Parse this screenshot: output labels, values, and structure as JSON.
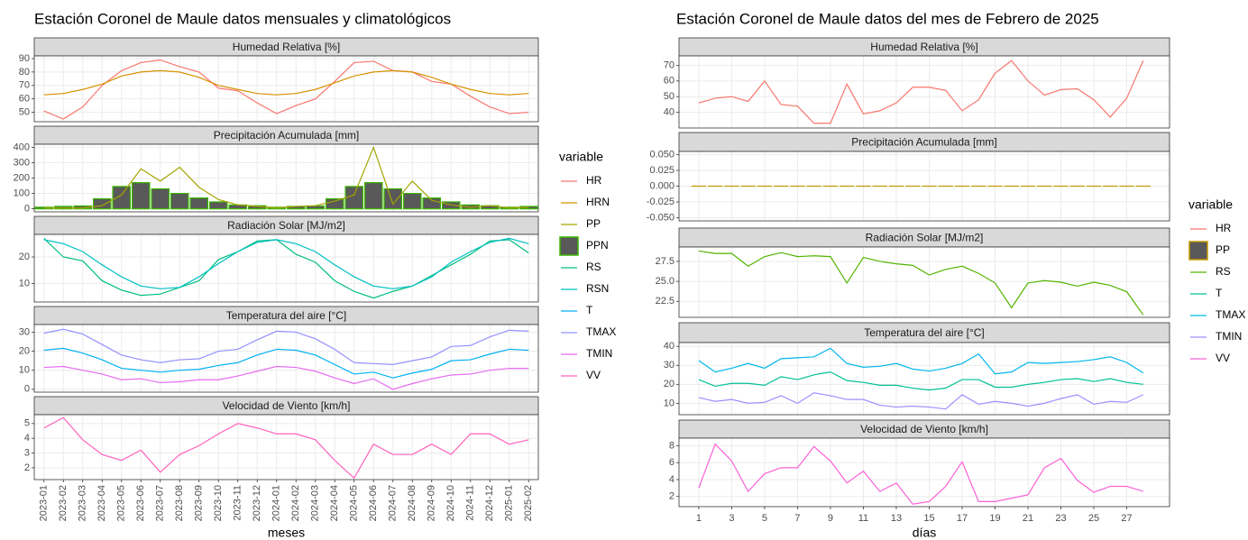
{
  "chart_data": [
    {
      "type": "line",
      "title": "Estación Coronel de Maule datos mensuales y climatológicos",
      "xlabel": "meses",
      "legend_title": "variable",
      "grid": true,
      "categories": [
        "2023-01",
        "2023-02",
        "2023-03",
        "2023-04",
        "2023-05",
        "2023-06",
        "2023-07",
        "2023-08",
        "2023-09",
        "2023-10",
        "2023-11",
        "2023-12",
        "2024-01",
        "2024-02",
        "2024-03",
        "2024-04",
        "2024-05",
        "2024-06",
        "2024-07",
        "2024-08",
        "2024-09",
        "2024-10",
        "2024-11",
        "2024-12",
        "2025-01",
        "2025-02"
      ],
      "panels": [
        {
          "title": "Humedad Relativa [%]",
          "ylim": [
            43,
            92
          ],
          "yticks": [
            50,
            60,
            70,
            80,
            90
          ],
          "series": [
            {
              "name": "HR",
              "color": "#F8766D",
              "values": [
                51,
                45,
                54,
                70,
                81,
                87,
                89,
                84,
                80,
                68,
                66,
                57,
                49,
                55,
                60,
                73,
                87,
                88,
                81,
                80,
                73,
                71,
                62,
                54,
                49,
                50
              ]
            },
            {
              "name": "HRN",
              "color": "#D89000",
              "values": [
                63,
                64,
                67,
                71,
                77,
                80,
                81,
                80,
                76,
                70,
                67,
                64,
                63,
                64,
                67,
                72,
                77,
                80,
                81,
                80,
                76,
                71,
                67,
                64,
                63,
                64
              ]
            }
          ]
        },
        {
          "title": "Precipitación Acumulada [mm]",
          "ylim": [
            -20,
            420
          ],
          "yticks": [
            0,
            100,
            200,
            300,
            400
          ],
          "series": [
            {
              "name": "PP",
              "color": "#A3A500",
              "values": [
                5,
                5,
                5,
                20,
                90,
                260,
                180,
                270,
                140,
                60,
                25,
                15,
                5,
                15,
                20,
                50,
                90,
                400,
                30,
                180,
                55,
                25,
                10,
                20,
                5,
                10
              ]
            },
            {
              "name": "PPN",
              "color": "#39B600",
              "kind": "bar",
              "fill": "#595959",
              "values": [
                10,
                15,
                18,
                65,
                145,
                170,
                130,
                100,
                70,
                45,
                25,
                20,
                10,
                15,
                18,
                65,
                145,
                170,
                130,
                100,
                70,
                45,
                25,
                20,
                10,
                15
              ]
            }
          ]
        },
        {
          "title": "Radiación Solar [MJ/m2]",
          "ylim": [
            3,
            28.5
          ],
          "yticks": [
            10,
            20
          ],
          "series": [
            {
              "name": "RS",
              "color": "#00BF7D",
              "values": [
                27,
                20,
                18.5,
                11,
                7.5,
                5.5,
                6,
                8.5,
                11,
                19,
                22,
                26,
                26.5,
                21,
                18,
                11,
                7,
                4.5,
                7,
                9,
                13,
                17,
                21,
                26,
                26.5,
                21.5
              ]
            },
            {
              "name": "RSN",
              "color": "#00BFC4",
              "values": [
                26.5,
                25,
                22,
                17,
                12.5,
                9,
                8,
                8.5,
                12.5,
                17.5,
                22,
                25.5,
                26.5,
                25,
                22,
                17,
                12.5,
                9,
                8,
                9,
                12.5,
                18,
                22,
                25.5,
                27,
                25
              ]
            }
          ]
        },
        {
          "title": "Temperatura del aire [°C]",
          "ylim": [
            -1.5,
            34
          ],
          "yticks": [
            0,
            10,
            20,
            30
          ],
          "series": [
            {
              "name": "T",
              "color": "#00B0F6",
              "values": [
                20.5,
                21.5,
                19,
                15.5,
                11,
                10,
                9,
                10,
                10.5,
                12.5,
                14,
                18,
                21,
                20.5,
                18,
                13,
                8,
                9,
                6,
                8.5,
                10.5,
                15,
                15.5,
                18.5,
                21,
                20.5
              ]
            },
            {
              "name": "TMAX",
              "color": "#9590FF",
              "values": [
                29.5,
                31.5,
                29,
                23.5,
                18,
                15.5,
                14,
                15.5,
                16,
                20,
                21,
                26,
                30.5,
                30,
                26.5,
                21,
                14,
                13.5,
                13,
                15,
                17,
                22.5,
                23,
                27.5,
                31,
                30.5
              ]
            },
            {
              "name": "TMIN",
              "color": "#E76BF3",
              "values": [
                11.5,
                12,
                10,
                8,
                5,
                5.5,
                3.5,
                4,
                5,
                5,
                7,
                9.5,
                12,
                11.5,
                9.5,
                6,
                3,
                5.5,
                0,
                3,
                5.5,
                7.5,
                8,
                10,
                11,
                11
              ]
            }
          ]
        },
        {
          "title": "Velocidad de Viento [km/h]",
          "ylim": [
            1.2,
            5.6
          ],
          "yticks": [
            2,
            3,
            4,
            5
          ],
          "series": [
            {
              "name": "VV",
              "color": "#FF62BC",
              "values": [
                4.7,
                5.4,
                3.9,
                2.9,
                2.5,
                3.2,
                1.7,
                2.9,
                3.5,
                4.3,
                5,
                4.7,
                4.3,
                4.3,
                3.9,
                2.5,
                1.3,
                3.6,
                2.9,
                2.9,
                3.6,
                2.9,
                4.3,
                4.3,
                3.6,
                3.9
              ]
            }
          ]
        }
      ]
    },
    {
      "type": "line",
      "title": "Estación Coronel de Maule datos del mes de Febrero de 2025",
      "xlabel": "días",
      "legend_title": "variable",
      "grid": true,
      "x": [
        1,
        2,
        3,
        4,
        5,
        6,
        7,
        8,
        9,
        10,
        11,
        12,
        13,
        14,
        15,
        16,
        17,
        18,
        19,
        20,
        21,
        22,
        23,
        24,
        25,
        26,
        27,
        28
      ],
      "xlim": [
        -0.2,
        29.6
      ],
      "xticks": [
        1,
        3,
        5,
        7,
        9,
        11,
        13,
        15,
        17,
        19,
        21,
        23,
        25,
        27
      ],
      "panels": [
        {
          "title": "Humedad Relativa [%]",
          "ylim": [
            30,
            76
          ],
          "yticks": [
            40,
            50,
            60,
            70
          ],
          "series": [
            {
              "name": "HR",
              "color": "#F8766D",
              "values": [
                46,
                49,
                50,
                47,
                60,
                45,
                44,
                33,
                33,
                58,
                39,
                41,
                46,
                56,
                56,
                54,
                41,
                48,
                65,
                73,
                60,
                51,
                54.5,
                55,
                48,
                37,
                49,
                73
              ]
            }
          ]
        },
        {
          "title": "Precipitación Acumulada [mm]",
          "ylim": [
            -0.055,
            0.055
          ],
          "yticks": [
            {
              "value": -0.05,
              "label": "-0.050"
            },
            {
              "value": -0.025,
              "label": "-0.025"
            },
            {
              "value": 0,
              "label": "0.000"
            },
            {
              "value": 0.025,
              "label": "0.025"
            },
            {
              "value": 0.05,
              "label": "0.050"
            }
          ],
          "series": [
            {
              "name": "PP",
              "color": "#C49A00",
              "kind": "bar",
              "fill": "#595959",
              "values": [
                0,
                0,
                0,
                0,
                0,
                0,
                0,
                0,
                0,
                0,
                0,
                0,
                0,
                0,
                0,
                0,
                0,
                0,
                0,
                0,
                0,
                0,
                0,
                0,
                0,
                0,
                0,
                0
              ]
            }
          ]
        },
        {
          "title": "Radiación Solar [MJ/m2]",
          "ylim": [
            20.5,
            29.3
          ],
          "yticks": [
            22.5,
            {
              "value": 25,
              "label": "25.0"
            },
            27.5
          ],
          "series": [
            {
              "name": "RS",
              "color": "#53B400",
              "values": [
                28.8,
                28.5,
                28.5,
                26.9,
                28.1,
                28.6,
                28.1,
                28.2,
                28.1,
                24.8,
                28,
                27.5,
                27.2,
                27,
                25.8,
                26.5,
                26.9,
                26,
                24.8,
                21.7,
                24.8,
                25.1,
                24.9,
                24.4,
                24.9,
                24.5,
                23.7,
                20.8
              ]
            }
          ]
        },
        {
          "title": "Temperatura del aire [°C]",
          "ylim": [
            4,
            42
          ],
          "yticks": [
            10,
            20,
            30,
            40
          ],
          "series": [
            {
              "name": "T",
              "color": "#00C094",
              "values": [
                22.5,
                19,
                20.5,
                20.5,
                19.5,
                24,
                22.5,
                25,
                26.5,
                22,
                21,
                19.5,
                19.5,
                18,
                17,
                18,
                22.5,
                22.5,
                18.5,
                18.5,
                20,
                21,
                22.5,
                23,
                21.5,
                23,
                21,
                20
              ]
            },
            {
              "name": "TMAX",
              "color": "#00B6EB",
              "values": [
                32.5,
                26.5,
                28.5,
                31,
                28.5,
                33.5,
                34,
                34.5,
                39,
                31,
                29,
                29.5,
                31,
                28,
                27,
                28.5,
                31,
                36,
                25.5,
                26.5,
                31.5,
                31,
                31.5,
                32,
                33,
                34.5,
                31.5,
                26
              ]
            },
            {
              "name": "TMIN",
              "color": "#A58AFF",
              "values": [
                13,
                11,
                12,
                10,
                10.5,
                14,
                10,
                15.5,
                14,
                12,
                12,
                9,
                8,
                8.5,
                8,
                7,
                14.5,
                9.5,
                11,
                10,
                8.5,
                10,
                12.5,
                14.5,
                9.5,
                11,
                10.5,
                14.5
              ]
            }
          ]
        },
        {
          "title": "Velocidad de Viento [km/h]",
          "ylim": [
            0.8,
            8.9
          ],
          "yticks": [
            2,
            4,
            6,
            8
          ],
          "series": [
            {
              "name": "VV",
              "color": "#FB61D7",
              "values": [
                3,
                8.2,
                6.2,
                2.6,
                4.7,
                5.4,
                5.4,
                7.9,
                6.2,
                3.6,
                5,
                2.6,
                3.6,
                1.1,
                1.4,
                3.2,
                6.1,
                1.4,
                1.4,
                1.8,
                2.2,
                5.4,
                6.5,
                3.9,
                2.5,
                3.2,
                3.2,
                2.6
              ]
            }
          ]
        }
      ]
    }
  ]
}
